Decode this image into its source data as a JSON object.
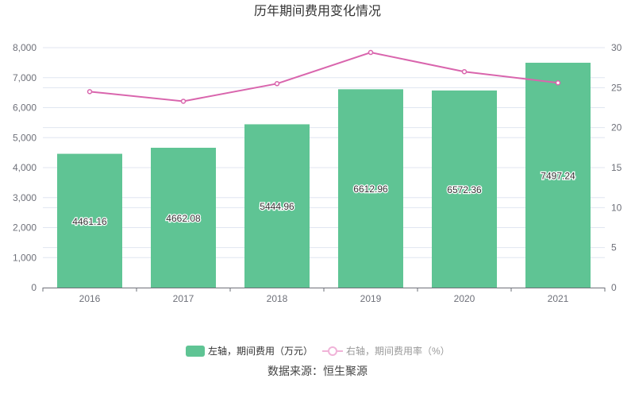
{
  "chart_data": {
    "type": "bar",
    "title": "历年期间费用变化情况",
    "categories": [
      "2016",
      "2017",
      "2018",
      "2019",
      "2020",
      "2021"
    ],
    "series": [
      {
        "name": "左轴，期间费用（万元）",
        "type": "bar",
        "axis": "left",
        "color": "#5fc494",
        "values": [
          4461.16,
          4662.08,
          5444.96,
          6612.96,
          6572.36,
          7497.24
        ],
        "labels": [
          "4461.16",
          "4662.08",
          "5444.96",
          "6612.96",
          "6572.36",
          "7497.24"
        ]
      },
      {
        "name": "右轴，期间费用率（%）",
        "type": "line",
        "axis": "right",
        "color": "#d965ad",
        "values": [
          24.5,
          23.3,
          25.5,
          29.4,
          27.0,
          25.6
        ]
      }
    ],
    "left_axis": {
      "range": [
        0,
        8000
      ],
      "ticks": [
        "0",
        "1,000",
        "2,000",
        "3,000",
        "4,000",
        "5,000",
        "6,000",
        "7,000",
        "8,000"
      ]
    },
    "right_axis": {
      "range": [
        0,
        30
      ],
      "ticks": [
        "0",
        "5",
        "10",
        "15",
        "20",
        "25",
        "30"
      ]
    },
    "legend_placement": "bottom",
    "source": "数据来源：恒生聚源"
  }
}
